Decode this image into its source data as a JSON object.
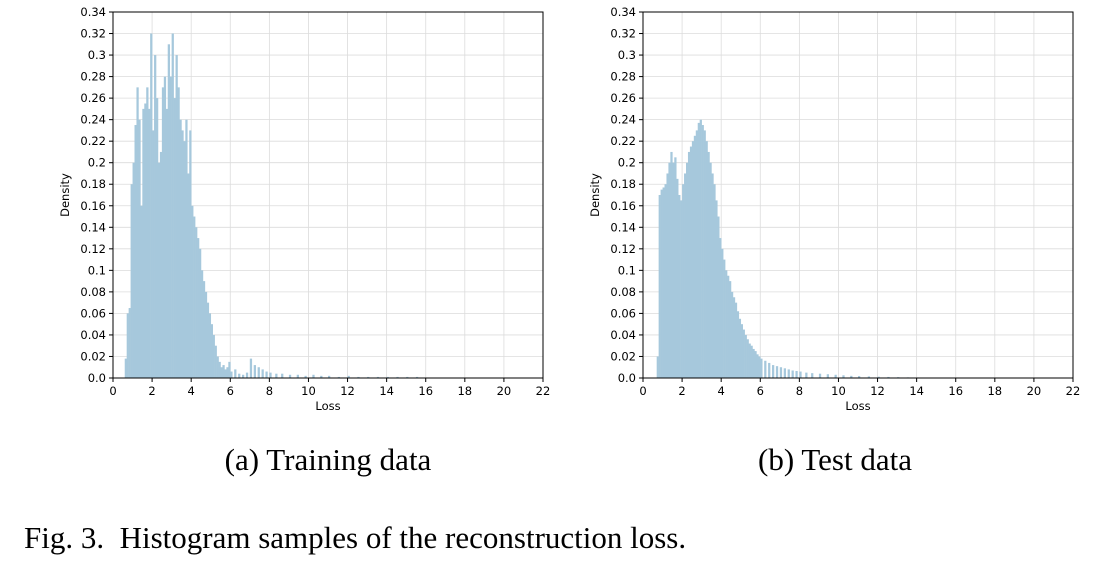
{
  "figure": {
    "caption_label": "Fig. 3.",
    "caption_text": "Histogram samples of the reconstruction loss."
  },
  "style": {
    "bar_color": "#a6c8dc",
    "grid_color": "#dcdcdc",
    "axis_color": "#000000"
  },
  "chart_data": [
    {
      "type": "bar",
      "subcaption_label": "(a)",
      "subcaption_text": "Training data",
      "xlabel": "Loss",
      "ylabel": "Density",
      "xlim": [
        0,
        22
      ],
      "ylim": [
        0,
        0.34
      ],
      "xticks": [
        0,
        2,
        4,
        6,
        8,
        10,
        12,
        14,
        16,
        18,
        20,
        22
      ],
      "yticks": [
        0.0,
        0.02,
        0.04,
        0.06,
        0.08,
        0.1,
        0.12,
        0.14,
        0.16,
        0.18,
        0.2,
        0.22,
        0.24,
        0.26,
        0.28,
        0.3,
        0.32,
        0.34
      ],
      "ytick_labels": [
        "0.0",
        "0.02",
        "0.04",
        "0.06",
        "0.08",
        "0.1",
        "0.12",
        "0.14",
        "0.16",
        "0.18",
        "0.2",
        "0.22",
        "0.24",
        "0.26",
        "0.28",
        "0.3",
        "0.32",
        "0.34"
      ],
      "grid": true,
      "bin_width": 0.1,
      "bin_starts": [
        0.6,
        0.7,
        0.8,
        0.9,
        1.0,
        1.1,
        1.2,
        1.3,
        1.4,
        1.5,
        1.6,
        1.7,
        1.8,
        1.9,
        2.0,
        2.1,
        2.2,
        2.3,
        2.4,
        2.5,
        2.6,
        2.7,
        2.8,
        2.9,
        3.0,
        3.1,
        3.2,
        3.3,
        3.4,
        3.5,
        3.6,
        3.7,
        3.8,
        3.9,
        4.0,
        4.1,
        4.2,
        4.3,
        4.4,
        4.5,
        4.6,
        4.7,
        4.8,
        4.9,
        5.0,
        5.1,
        5.2,
        5.3,
        5.4,
        5.5,
        5.6,
        5.7,
        5.8,
        5.9,
        6.0,
        6.2,
        6.4,
        6.6,
        6.8,
        7.0,
        7.2,
        7.4,
        7.6,
        7.8,
        8.0,
        8.3,
        8.6,
        9.0,
        9.4,
        9.8,
        10.2,
        10.6,
        11.0,
        11.5,
        12.0,
        12.5,
        13.0,
        13.5,
        14.0,
        14.5,
        15.0,
        15.5
      ],
      "values": [
        0.018,
        0.06,
        0.065,
        0.18,
        0.2,
        0.235,
        0.27,
        0.24,
        0.16,
        0.25,
        0.255,
        0.27,
        0.25,
        0.32,
        0.23,
        0.3,
        0.26,
        0.2,
        0.21,
        0.27,
        0.28,
        0.25,
        0.31,
        0.28,
        0.32,
        0.26,
        0.3,
        0.27,
        0.24,
        0.23,
        0.22,
        0.24,
        0.19,
        0.23,
        0.16,
        0.15,
        0.14,
        0.13,
        0.12,
        0.1,
        0.09,
        0.08,
        0.07,
        0.06,
        0.05,
        0.04,
        0.03,
        0.02,
        0.015,
        0.01,
        0.012,
        0.008,
        0.01,
        0.015,
        0.006,
        0.008,
        0.004,
        0.003,
        0.005,
        0.018,
        0.012,
        0.01,
        0.008,
        0.006,
        0.005,
        0.004,
        0.004,
        0.003,
        0.003,
        0.002,
        0.003,
        0.002,
        0.002,
        0.001,
        0.002,
        0.001,
        0.001,
        0.001,
        0.001,
        0.001,
        0.001,
        0.001
      ]
    },
    {
      "type": "bar",
      "subcaption_label": "(b)",
      "subcaption_text": "Test data",
      "xlabel": "Loss",
      "ylabel": "Density",
      "xlim": [
        0,
        22
      ],
      "ylim": [
        0,
        0.34
      ],
      "xticks": [
        0,
        2,
        4,
        6,
        8,
        10,
        12,
        14,
        16,
        18,
        20,
        22
      ],
      "yticks": [
        0.0,
        0.02,
        0.04,
        0.06,
        0.08,
        0.1,
        0.12,
        0.14,
        0.16,
        0.18,
        0.2,
        0.22,
        0.24,
        0.26,
        0.28,
        0.3,
        0.32,
        0.34
      ],
      "ytick_labels": [
        "0.0",
        "0.02",
        "0.04",
        "0.06",
        "0.08",
        "0.1",
        "0.12",
        "0.14",
        "0.16",
        "0.18",
        "0.2",
        "0.22",
        "0.24",
        "0.26",
        "0.28",
        "0.3",
        "0.32",
        "0.34"
      ],
      "grid": true,
      "bin_width": 0.1,
      "bin_starts": [
        0.7,
        0.8,
        0.9,
        1.0,
        1.1,
        1.2,
        1.3,
        1.4,
        1.5,
        1.6,
        1.7,
        1.8,
        1.9,
        2.0,
        2.1,
        2.2,
        2.3,
        2.4,
        2.5,
        2.6,
        2.7,
        2.8,
        2.9,
        3.0,
        3.1,
        3.2,
        3.3,
        3.4,
        3.5,
        3.6,
        3.7,
        3.8,
        3.9,
        4.0,
        4.1,
        4.2,
        4.3,
        4.4,
        4.5,
        4.6,
        4.7,
        4.8,
        4.9,
        5.0,
        5.1,
        5.2,
        5.3,
        5.4,
        5.5,
        5.6,
        5.7,
        5.8,
        5.9,
        6.0,
        6.2,
        6.4,
        6.6,
        6.8,
        7.0,
        7.2,
        7.4,
        7.6,
        7.8,
        8.0,
        8.3,
        8.6,
        9.0,
        9.4,
        9.8,
        10.2,
        10.6,
        11.0,
        11.5,
        12.0,
        12.5,
        13.0,
        13.5,
        14.0,
        14.5,
        15.0
      ],
      "values": [
        0.02,
        0.17,
        0.175,
        0.177,
        0.18,
        0.19,
        0.2,
        0.21,
        0.2,
        0.205,
        0.185,
        0.17,
        0.165,
        0.18,
        0.19,
        0.2,
        0.21,
        0.215,
        0.22,
        0.225,
        0.23,
        0.237,
        0.24,
        0.235,
        0.23,
        0.22,
        0.21,
        0.2,
        0.19,
        0.18,
        0.165,
        0.15,
        0.13,
        0.12,
        0.11,
        0.1,
        0.095,
        0.09,
        0.08,
        0.075,
        0.07,
        0.062,
        0.055,
        0.05,
        0.045,
        0.04,
        0.036,
        0.032,
        0.03,
        0.027,
        0.025,
        0.022,
        0.02,
        0.018,
        0.016,
        0.014,
        0.012,
        0.011,
        0.01,
        0.009,
        0.008,
        0.007,
        0.0065,
        0.006,
        0.005,
        0.0045,
        0.004,
        0.0035,
        0.003,
        0.0025,
        0.002,
        0.0018,
        0.0015,
        0.0012,
        0.001,
        0.0008,
        0.0006,
        0.0005,
        0.0004,
        0.0003
      ]
    }
  ]
}
